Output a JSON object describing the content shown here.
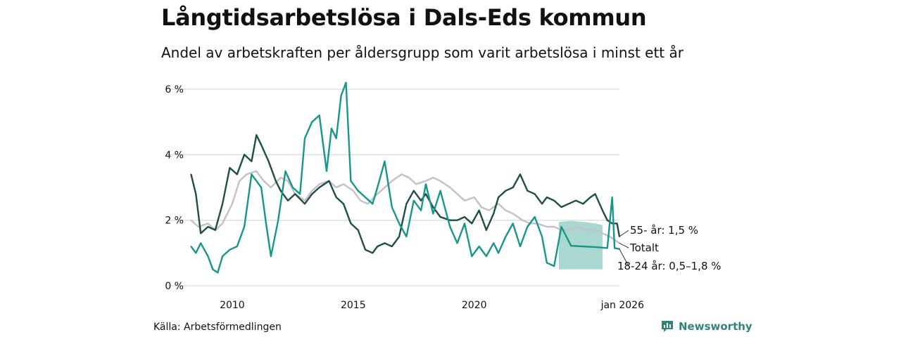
{
  "title": "Långtidsarbetslösa i Dals-Eds kommun",
  "subtitle": "Andel av arbetskraften per åldersgrupp som varit arbetslösa i minst ett år",
  "source": "Källa: Arbetsförmedlingen",
  "brand": {
    "name": "Newsworthy",
    "icon": "newsworthy-logo-icon"
  },
  "colors": {
    "total": "#c4bfcc",
    "age_55": "#1e4f47",
    "age_18_24": "#17968a",
    "band": "#a6d5cf",
    "grid": "#dddddd"
  },
  "chart_data": {
    "type": "line",
    "title": "Långtidsarbetslösa i Dals-Eds kommun",
    "xlabel": "",
    "ylabel": "",
    "xlim": [
      2008.2,
      2026.0
    ],
    "ylim": [
      0,
      6
    ],
    "grid": true,
    "y_ticks": [
      {
        "value": 0,
        "label": "0 %"
      },
      {
        "value": 2,
        "label": "2 %"
      },
      {
        "value": 4,
        "label": "4 %"
      },
      {
        "value": 6,
        "label": "6 %"
      }
    ],
    "x_ticks": [
      {
        "value": 2010,
        "label": "2010"
      },
      {
        "value": 2015,
        "label": "2015"
      },
      {
        "value": 2020,
        "label": "2020"
      },
      {
        "value": 2026,
        "label": "jan 2026"
      }
    ],
    "series": [
      {
        "name": "Totalt",
        "label": "Totalt",
        "color_key": "total",
        "x": [
          2008.3,
          2008.6,
          2009.0,
          2009.3,
          2009.6,
          2010.0,
          2010.3,
          2010.6,
          2011.0,
          2011.3,
          2011.6,
          2012.0,
          2012.3,
          2012.6,
          2013.0,
          2013.3,
          2013.6,
          2014.0,
          2014.3,
          2014.6,
          2015.0,
          2015.3,
          2015.6,
          2016.0,
          2016.3,
          2016.6,
          2017.0,
          2017.3,
          2017.6,
          2018.0,
          2018.3,
          2018.6,
          2019.0,
          2019.3,
          2019.6,
          2020.0,
          2020.3,
          2020.6,
          2021.0,
          2021.3,
          2021.6,
          2022.0,
          2022.3,
          2022.6,
          2023.0,
          2023.3,
          2023.6,
          2024.0,
          2024.3,
          2024.6,
          2025.0,
          2025.3,
          2025.6,
          2026.0
        ],
        "values": [
          2.0,
          1.8,
          1.9,
          1.7,
          1.9,
          2.5,
          3.2,
          3.4,
          3.5,
          3.2,
          3.0,
          3.3,
          3.2,
          2.8,
          2.6,
          2.9,
          3.1,
          3.2,
          3.0,
          3.1,
          2.9,
          2.6,
          2.5,
          2.8,
          3.0,
          3.2,
          3.4,
          3.3,
          3.1,
          3.2,
          3.3,
          3.2,
          3.0,
          2.8,
          2.6,
          2.7,
          2.4,
          2.3,
          2.5,
          2.3,
          2.2,
          2.0,
          1.9,
          1.9,
          1.8,
          1.8,
          1.7,
          1.7,
          1.8,
          1.7,
          1.7,
          1.6,
          1.5,
          1.3
        ]
      },
      {
        "name": "55- år",
        "label": "55- år: 1,5 %",
        "color_key": "age_55",
        "x": [
          2008.3,
          2008.5,
          2008.7,
          2009.0,
          2009.3,
          2009.6,
          2009.9,
          2010.2,
          2010.5,
          2010.8,
          2011.0,
          2011.2,
          2011.5,
          2011.8,
          2012.0,
          2012.3,
          2012.6,
          2013.0,
          2013.3,
          2013.6,
          2014.0,
          2014.3,
          2014.6,
          2014.9,
          2015.2,
          2015.5,
          2015.8,
          2016.0,
          2016.3,
          2016.6,
          2016.9,
          2017.2,
          2017.5,
          2017.8,
          2018.0,
          2018.3,
          2018.6,
          2019.0,
          2019.3,
          2019.6,
          2019.9,
          2020.2,
          2020.5,
          2020.8,
          2021.0,
          2021.3,
          2021.6,
          2021.9,
          2022.2,
          2022.5,
          2022.8,
          2023.0,
          2023.3,
          2023.6,
          2023.9,
          2024.2,
          2024.5,
          2024.8,
          2025.0,
          2025.3,
          2025.5,
          2025.7,
          2025.9,
          2026.0
        ],
        "values": [
          3.4,
          2.8,
          1.6,
          1.8,
          1.7,
          2.5,
          3.6,
          3.4,
          4.0,
          3.8,
          4.6,
          4.3,
          3.8,
          3.2,
          2.9,
          2.6,
          2.8,
          2.5,
          2.8,
          3.0,
          3.2,
          2.7,
          2.5,
          1.9,
          1.7,
          1.1,
          1.0,
          1.2,
          1.3,
          1.2,
          1.5,
          2.5,
          2.9,
          2.6,
          2.8,
          2.4,
          2.1,
          2.0,
          2.0,
          2.1,
          1.9,
          2.3,
          1.7,
          2.2,
          2.7,
          2.9,
          3.0,
          3.4,
          2.9,
          2.8,
          2.5,
          2.7,
          2.6,
          2.4,
          2.5,
          2.6,
          2.5,
          2.7,
          2.8,
          2.3,
          2.0,
          1.9,
          1.9,
          1.5
        ]
      },
      {
        "name": "18-24 år",
        "label": "18-24 år: 0,5–1,8 %",
        "color_key": "age_18_24",
        "x": [
          2008.3,
          2008.5,
          2008.7,
          2009.0,
          2009.2,
          2009.4,
          2009.6,
          2009.9,
          2010.2,
          2010.5,
          2010.8,
          2011.0,
          2011.2,
          2011.4,
          2011.6,
          2011.9,
          2012.2,
          2012.5,
          2012.8,
          2013.0,
          2013.3,
          2013.6,
          2013.9,
          2014.1,
          2014.3,
          2014.5,
          2014.7,
          2014.9,
          2015.2,
          2015.5,
          2015.8,
          2016.0,
          2016.3,
          2016.6,
          2016.9,
          2017.2,
          2017.5,
          2017.8,
          2018.0,
          2018.3,
          2018.6,
          2019.0,
          2019.3,
          2019.6,
          2019.9,
          2020.2,
          2020.5,
          2020.8,
          2021.0,
          2021.3,
          2021.6,
          2021.9,
          2022.2,
          2022.5,
          2022.8,
          2023.0,
          2023.3,
          2023.6,
          2024.0,
          2024.5,
          2025.0,
          2025.5,
          2025.7,
          2025.8,
          2026.0
        ],
        "values": [
          1.2,
          1.0,
          1.3,
          0.9,
          0.5,
          0.4,
          0.9,
          1.1,
          1.2,
          1.8,
          3.4,
          3.2,
          3.0,
          1.9,
          0.9,
          2.0,
          3.5,
          3.0,
          2.8,
          4.5,
          5.0,
          5.2,
          3.5,
          4.8,
          4.5,
          5.8,
          6.2,
          3.2,
          2.9,
          2.7,
          2.5,
          3.0,
          3.8,
          2.4,
          1.9,
          1.5,
          2.6,
          2.3,
          3.1,
          2.2,
          2.9,
          1.8,
          1.3,
          1.9,
          0.9,
          1.2,
          0.9,
          1.3,
          1.0,
          1.5,
          1.9,
          1.2,
          1.8,
          2.1,
          1.5,
          0.7,
          0.6,
          1.8,
          1.22,
          1.2,
          1.18,
          1.15,
          2.7,
          1.15,
          1.12
        ]
      }
    ],
    "band": {
      "name": "18-24 år osäkerhetsintervall",
      "color_key": "band",
      "x": [
        2023.5,
        2024.0,
        2024.5,
        2025.0,
        2025.3
      ],
      "low": [
        0.5,
        0.5,
        0.5,
        0.5,
        0.5
      ],
      "high": [
        1.95,
        1.98,
        1.95,
        1.9,
        1.85
      ]
    }
  }
}
